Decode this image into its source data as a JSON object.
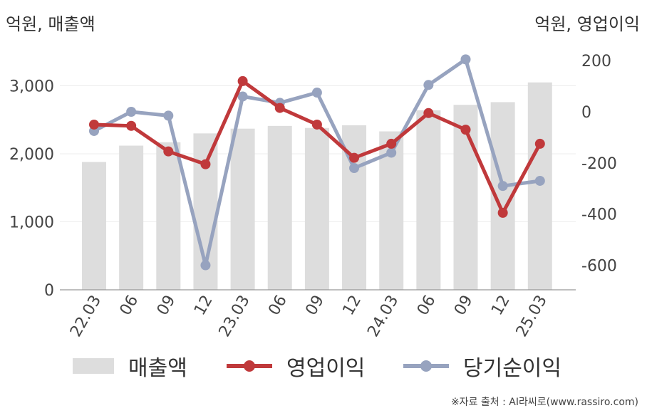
{
  "chart_data": {
    "type": "bar+line",
    "categories": [
      "22.03",
      "06",
      "09",
      "12",
      "23.03",
      "06",
      "09",
      "12",
      "24.03",
      "06",
      "09",
      "12",
      "25.03"
    ],
    "left_axis": {
      "label": "억원, 매출액",
      "range": [
        0,
        3600
      ],
      "ticks": [
        0,
        1000,
        2000,
        3000
      ],
      "tick_labels": [
        "0",
        "1,000",
        "2,000",
        "3,000"
      ]
    },
    "right_axis": {
      "label": "억원, 영업이익",
      "range": [
        -700,
        220
      ],
      "ticks": [
        -600,
        -400,
        -200,
        0,
        200
      ],
      "tick_labels": [
        "-600",
        "-400",
        "-200",
        "0",
        "200"
      ]
    },
    "series": [
      {
        "name": "매출액",
        "kind": "bar",
        "axis": "left",
        "color": "#dddddd",
        "values": [
          1880,
          2120,
          2170,
          2300,
          2370,
          2410,
          2380,
          2420,
          2330,
          2640,
          2720,
          2760,
          3050
        ]
      },
      {
        "name": "영업이익",
        "kind": "line",
        "axis": "right",
        "color": "#c0393b",
        "values": [
          -50,
          -55,
          -155,
          -205,
          120,
          15,
          -50,
          -180,
          -125,
          -5,
          -70,
          -395,
          -125
        ]
      },
      {
        "name": "당기순이익",
        "kind": "line",
        "axis": "right",
        "color": "#97a3bf",
        "values": [
          -75,
          0,
          -15,
          -600,
          60,
          35,
          75,
          -220,
          -160,
          105,
          205,
          -290,
          -270
        ]
      }
    ],
    "grid": true,
    "legend_position": "bottom"
  },
  "source": "※자료 출처 : AI라씨로(www.rassiro.com)"
}
